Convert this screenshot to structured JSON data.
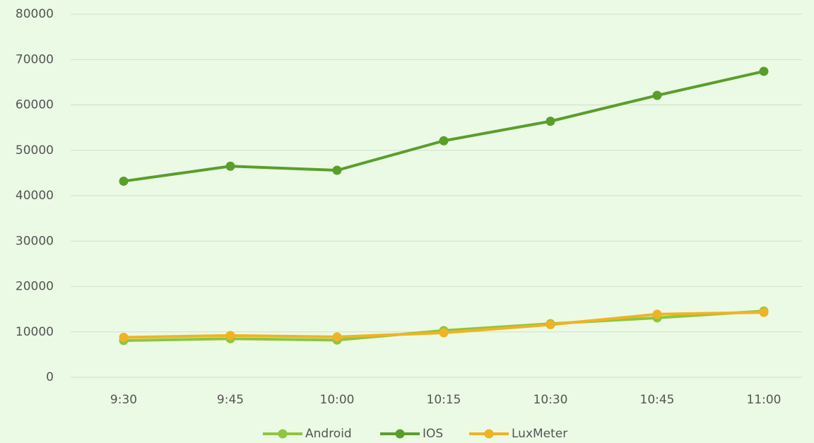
{
  "chart_data": {
    "type": "line",
    "categories": [
      "9:30",
      "9:45",
      "10:00",
      "10:15",
      "10:30",
      "10:45",
      "11:00"
    ],
    "series": [
      {
        "name": "Android",
        "color": "#8dc63f",
        "values": [
          8100,
          8500,
          8200,
          10300,
          11800,
          13100,
          14600
        ]
      },
      {
        "name": "IOS",
        "color": "#5a9e2a",
        "values": [
          43200,
          46500,
          45600,
          52100,
          56400,
          62100,
          67400
        ]
      },
      {
        "name": "LuxMeter",
        "color": "#f0b323",
        "values": [
          8800,
          9200,
          8900,
          9800,
          11600,
          13900,
          14300
        ]
      }
    ],
    "ylim": [
      0,
      80000
    ],
    "yticks": [
      0,
      10000,
      20000,
      30000,
      40000,
      50000,
      60000,
      70000,
      80000
    ],
    "grid": true,
    "legend": "bottom"
  }
}
